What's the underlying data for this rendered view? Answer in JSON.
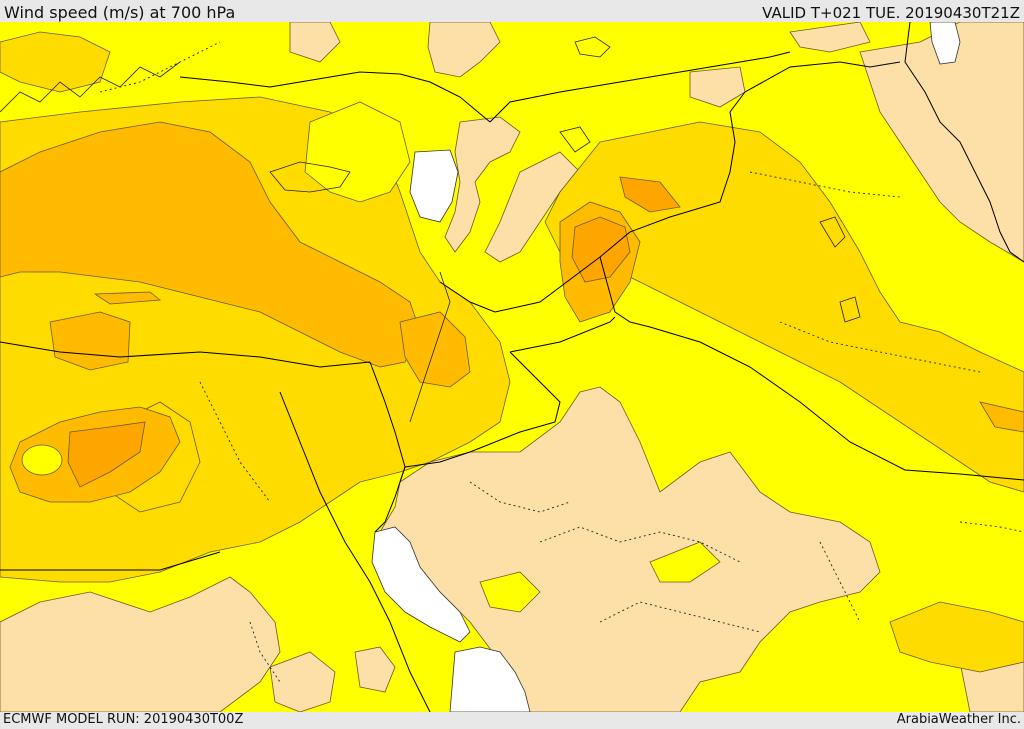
{
  "header": {
    "title": "Wind speed (m/s) at 700 hPa",
    "valid": "VALID T+021 TUE. 20190430T21Z"
  },
  "footer": {
    "model_run": "ECMWF MODEL RUN: 20190430T00Z",
    "credit": "ArabiaWeather Inc."
  },
  "map": {
    "colors": {
      "calm": "#fde0a8",
      "light": "#ffff00",
      "moderate": "#ffdc00",
      "strong": "#ffbb00",
      "very_strong": "#ffa500",
      "water": "#ffffff",
      "border": "#000000",
      "contour": "#6a5a2a"
    }
  }
}
